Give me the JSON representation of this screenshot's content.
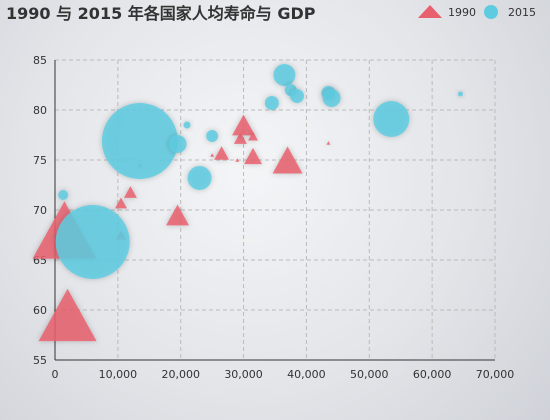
{
  "chart_data": {
    "type": "scatter",
    "title": "1990 与 2015 年各国家人均寿命与 GDP",
    "xlabel": "",
    "ylabel": "",
    "xlim": [
      0,
      70000
    ],
    "ylim": [
      55,
      85
    ],
    "x_ticks": [
      "0",
      "10,000",
      "20,000",
      "30,000",
      "40,000",
      "50,000",
      "60,000",
      "70,000"
    ],
    "y_ticks": [
      "55",
      "60",
      "65",
      "70",
      "75",
      "80",
      "85"
    ],
    "grid": true,
    "legend_position": "top-right",
    "series": [
      {
        "name": "1990",
        "marker": "triangle",
        "color": "#e8606e",
        "points": [
          {
            "gdp": 2000,
            "life": 59.5,
            "size": 58
          },
          {
            "gdp": 1500,
            "life": 68,
            "size": 64
          },
          {
            "gdp": 10500,
            "life": 70.7,
            "size": 12
          },
          {
            "gdp": 12000,
            "life": 71.8,
            "size": 13
          },
          {
            "gdp": 19500,
            "life": 69.5,
            "size": 23
          },
          {
            "gdp": 13500,
            "life": 74.5,
            "size": 4
          },
          {
            "gdp": 25000,
            "life": 75.5,
            "size": 4
          },
          {
            "gdp": 26500,
            "life": 75.7,
            "size": 15
          },
          {
            "gdp": 29000,
            "life": 75.0,
            "size": 4
          },
          {
            "gdp": 29500,
            "life": 77.2,
            "size": 13
          },
          {
            "gdp": 30000,
            "life": 78.5,
            "size": 23
          },
          {
            "gdp": 31500,
            "life": 77.4,
            "size": 10
          },
          {
            "gdp": 31500,
            "life": 75.4,
            "size": 18
          },
          {
            "gdp": 37000,
            "life": 75.0,
            "size": 30
          },
          {
            "gdp": 43500,
            "life": 76.7,
            "size": 4
          },
          {
            "gdp": 10500,
            "life": 67.5,
            "size": 10
          }
        ]
      },
      {
        "name": "2015",
        "marker": "circle",
        "color": "#5ecbe0",
        "points": [
          {
            "gdp": 6000,
            "life": 66.8,
            "size": 74
          },
          {
            "gdp": 13500,
            "life": 76.9,
            "size": 76
          },
          {
            "gdp": 1300,
            "life": 71.5,
            "size": 10
          },
          {
            "gdp": 19500,
            "life": 76.6,
            "size": 18
          },
          {
            "gdp": 21000,
            "life": 78.5,
            "size": 7
          },
          {
            "gdp": 23000,
            "life": 73.2,
            "size": 24
          },
          {
            "gdp": 25000,
            "life": 77.4,
            "size": 12
          },
          {
            "gdp": 34500,
            "life": 80.7,
            "size": 14
          },
          {
            "gdp": 36500,
            "life": 83.5,
            "size": 22
          },
          {
            "gdp": 37500,
            "life": 82.0,
            "size": 12
          },
          {
            "gdp": 38500,
            "life": 81.4,
            "size": 14
          },
          {
            "gdp": 43500,
            "life": 81.7,
            "size": 14
          },
          {
            "gdp": 44000,
            "life": 81.2,
            "size": 18
          },
          {
            "gdp": 53500,
            "life": 79.1,
            "size": 36
          },
          {
            "gdp": 64500,
            "life": 81.6,
            "size": 5
          }
        ]
      }
    ]
  }
}
